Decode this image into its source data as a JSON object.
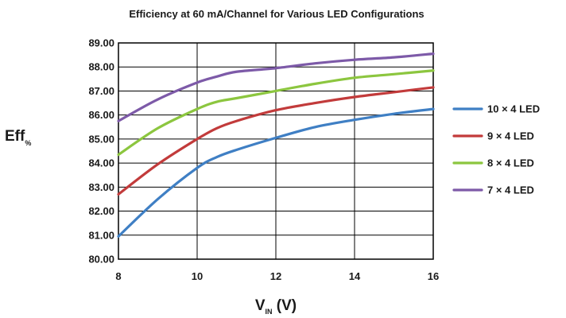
{
  "chart_data": {
    "type": "line",
    "title": "Efficiency at 60 mA/Channel for Various LED Configurations",
    "xlabel": {
      "main": "V",
      "sub": "IN",
      "suffix": " (V)"
    },
    "ylabel": {
      "main": "Eff",
      "sub": "%"
    },
    "xlim": [
      8,
      16
    ],
    "ylim": [
      80,
      89
    ],
    "x_ticks": [
      8,
      10,
      12,
      14,
      16
    ],
    "y_ticks": [
      "80.00",
      "81.00",
      "82.00",
      "83.00",
      "84.00",
      "85.00",
      "86.00",
      "87.00",
      "88.00",
      "89.00"
    ],
    "grid": "on",
    "legend_position": "right",
    "series": [
      {
        "name": "10 × 4 LED",
        "color": "#3f7fc4",
        "x": [
          8,
          9,
          10,
          10.5,
          11,
          12,
          13,
          14,
          15,
          16
        ],
        "y": [
          80.95,
          82.5,
          83.8,
          84.25,
          84.55,
          85.05,
          85.5,
          85.8,
          86.05,
          86.25
        ]
      },
      {
        "name": "9 × 4 LED",
        "color": "#c23b3b",
        "x": [
          8,
          9,
          10,
          10.5,
          11,
          12,
          13,
          14,
          15,
          16
        ],
        "y": [
          82.7,
          83.95,
          85.0,
          85.45,
          85.75,
          86.2,
          86.5,
          86.75,
          86.95,
          87.15
        ]
      },
      {
        "name": "8 × 4 LED",
        "color": "#8cc63f",
        "x": [
          8,
          9,
          10,
          10.5,
          11,
          12,
          13,
          14,
          15,
          16
        ],
        "y": [
          84.35,
          85.45,
          86.25,
          86.55,
          86.7,
          87.0,
          87.3,
          87.55,
          87.7,
          87.85
        ]
      },
      {
        "name": "7 × 4 LED",
        "color": "#7d5aa8",
        "x": [
          8,
          9,
          10,
          10.5,
          11,
          12,
          13,
          14,
          15,
          16
        ],
        "y": [
          85.75,
          86.65,
          87.35,
          87.6,
          87.8,
          87.95,
          88.15,
          88.3,
          88.4,
          88.55
        ]
      }
    ]
  }
}
